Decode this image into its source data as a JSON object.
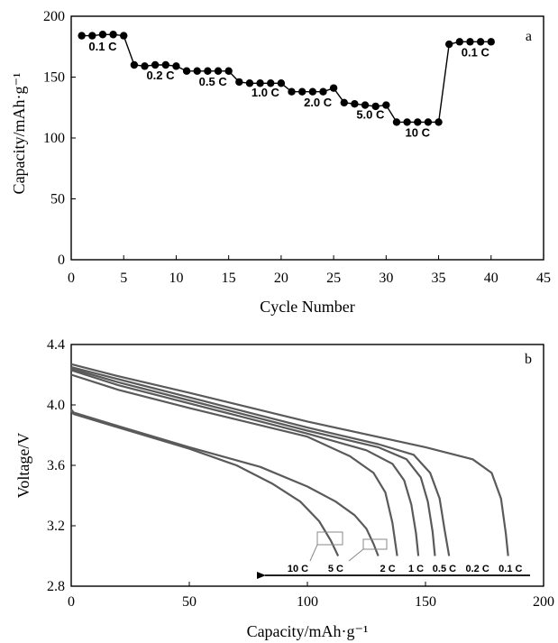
{
  "chart_data": [
    {
      "type": "line",
      "panel_label": "a",
      "xlabel": "Cycle Number",
      "ylabel": "Capacity/mAh·g⁻¹",
      "xlim": [
        0,
        45
      ],
      "ylim": [
        0,
        200
      ],
      "xticks": [
        0,
        5,
        10,
        15,
        20,
        25,
        30,
        35,
        40,
        45
      ],
      "yticks": [
        0,
        50,
        100,
        150,
        200
      ],
      "grid": false,
      "series": [
        {
          "x": [
            1,
            2,
            3,
            4,
            5,
            6,
            7,
            8,
            9,
            10,
            11,
            12,
            13,
            14,
            15,
            16,
            17,
            18,
            19,
            20,
            21,
            22,
            23,
            24,
            25,
            26,
            27,
            28,
            29,
            30,
            31,
            32,
            33,
            34,
            35,
            36,
            37,
            38,
            39,
            40
          ],
          "values": [
            184,
            184,
            185,
            185,
            184,
            160,
            159,
            160,
            160,
            159,
            155,
            155,
            155,
            155,
            155,
            146,
            145,
            145,
            145,
            145,
            138,
            138,
            138,
            138,
            141,
            129,
            128,
            127,
            126,
            127,
            113,
            113,
            113,
            113,
            113,
            177,
            179,
            179,
            179,
            179
          ]
        }
      ],
      "annotations": [
        {
          "text": "0.1 C",
          "x": 3,
          "y": 172
        },
        {
          "text": "0.2 C",
          "x": 8.5,
          "y": 148
        },
        {
          "text": "0.5 C",
          "x": 13.5,
          "y": 143
        },
        {
          "text": "1.0 C",
          "x": 18.5,
          "y": 134
        },
        {
          "text": "2.0 C",
          "x": 23.5,
          "y": 126
        },
        {
          "text": "5.0 C",
          "x": 28.5,
          "y": 116
        },
        {
          "text": "10 C",
          "x": 33,
          "y": 101
        },
        {
          "text": "0.1 C",
          "x": 38.5,
          "y": 167
        }
      ]
    },
    {
      "type": "line",
      "panel_label": "b",
      "xlabel": "Capacity/mAh·g⁻¹",
      "ylabel": "Voltage/V",
      "xlim": [
        0,
        200
      ],
      "ylim": [
        2.8,
        4.4
      ],
      "xticks": [
        0,
        50,
        100,
        150,
        200
      ],
      "yticks": [
        2.8,
        3.2,
        3.6,
        4.0,
        4.4
      ],
      "ytick_labels": [
        "2.8",
        "3.2",
        "3.6",
        "4.0",
        "4.4"
      ],
      "grid": false,
      "series": [
        {
          "name": "0.1 C",
          "x": [
            0,
            20,
            50,
            100,
            150,
            170,
            178,
            182,
            184,
            185
          ],
          "values": [
            4.27,
            4.19,
            4.08,
            3.89,
            3.72,
            3.64,
            3.55,
            3.38,
            3.15,
            3.0
          ]
        },
        {
          "name": "0.2 C",
          "x": [
            0,
            20,
            50,
            100,
            130,
            145,
            152,
            156,
            158,
            160
          ],
          "values": [
            4.25,
            4.17,
            4.05,
            3.85,
            3.74,
            3.67,
            3.55,
            3.38,
            3.18,
            3.0
          ]
        },
        {
          "name": "0.5 C",
          "x": [
            0,
            20,
            50,
            100,
            130,
            142,
            148,
            151,
            153,
            154
          ],
          "values": [
            4.24,
            4.15,
            4.03,
            3.83,
            3.72,
            3.64,
            3.52,
            3.36,
            3.16,
            3.0
          ]
        },
        {
          "name": "1 C",
          "x": [
            0,
            20,
            50,
            100,
            125,
            136,
            141,
            144,
            146,
            147
          ],
          "values": [
            4.23,
            4.13,
            4.01,
            3.81,
            3.7,
            3.61,
            3.5,
            3.34,
            3.15,
            3.0
          ]
        },
        {
          "name": "2 C",
          "x": [
            0,
            20,
            50,
            100,
            118,
            128,
            133,
            136,
            138
          ],
          "values": [
            4.2,
            4.1,
            3.98,
            3.79,
            3.66,
            3.55,
            3.42,
            3.22,
            3.0
          ]
        },
        {
          "name": "5 C",
          "x": [
            0,
            1,
            20,
            50,
            80,
            100,
            112,
            120,
            125,
            128,
            130
          ],
          "values": [
            3.97,
            3.95,
            3.86,
            3.72,
            3.59,
            3.46,
            3.36,
            3.27,
            3.18,
            3.08,
            3.0
          ]
        },
        {
          "name": "10 C",
          "x": [
            0,
            1,
            20,
            50,
            70,
            85,
            97,
            105,
            110,
            113
          ],
          "values": [
            3.96,
            3.94,
            3.85,
            3.71,
            3.6,
            3.48,
            3.36,
            3.23,
            3.1,
            3.0
          ]
        }
      ],
      "rate_labels": [
        {
          "text": "0.1 C",
          "x": 186
        },
        {
          "text": "0.2 C",
          "x": 172
        },
        {
          "text": "0.5 C",
          "x": 158
        },
        {
          "text": "1 C",
          "x": 146
        },
        {
          "text": "2 C",
          "x": 134
        },
        {
          "text": "5 C",
          "x": 112
        },
        {
          "text": "10 C",
          "x": 96
        }
      ]
    }
  ]
}
